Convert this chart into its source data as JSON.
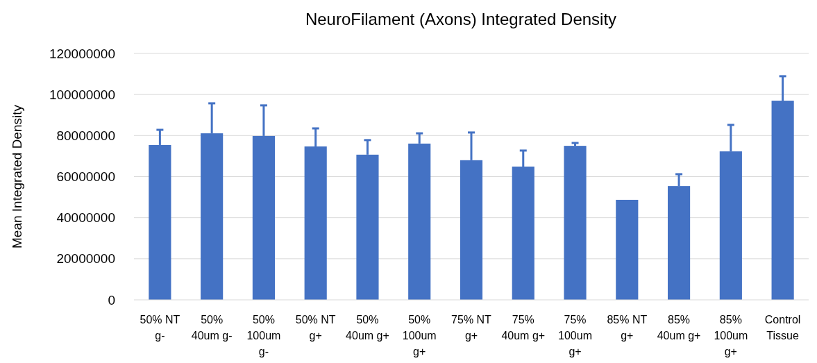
{
  "chart_data": {
    "type": "bar",
    "title": "NeuroFilament (Axons) Integrated Density",
    "ylabel": "Mean Integrated Density",
    "categories": [
      "50% NT g-",
      "50% 40um g-",
      "50% 100um g-",
      "50% NT g+",
      "50% 40um g+",
      "50% 100um g+",
      "75% NT g+",
      "75% 40um g+",
      "75% 100um g+",
      "85% NT g+",
      "85% 40um g+",
      "85% 100um g+",
      "Control Tissue"
    ],
    "values": [
      75400000,
      81100000,
      79800000,
      74700000,
      70700000,
      76100000,
      68000000,
      64900000,
      75000000,
      48700000,
      55400000,
      72300000,
      97000000
    ],
    "errors": [
      [
        75400000,
        82800000
      ],
      [
        81100000,
        95700000
      ],
      [
        79800000,
        94700000
      ],
      [
        74700000,
        83500000
      ],
      [
        70700000,
        77800000
      ],
      [
        76100000,
        81100000
      ],
      [
        68000000,
        81500000
      ],
      [
        64900000,
        72700000
      ],
      [
        75000000,
        76400000
      ],
      null,
      [
        55400000,
        61200000
      ],
      [
        72300000,
        85200000
      ],
      [
        97000000,
        108900000
      ]
    ],
    "color": "#4472c4",
    "ylim": [
      0,
      120000000
    ],
    "yticks": [
      0,
      20000000,
      40000000,
      60000000,
      80000000,
      100000000,
      120000000
    ],
    "grid": "y"
  }
}
